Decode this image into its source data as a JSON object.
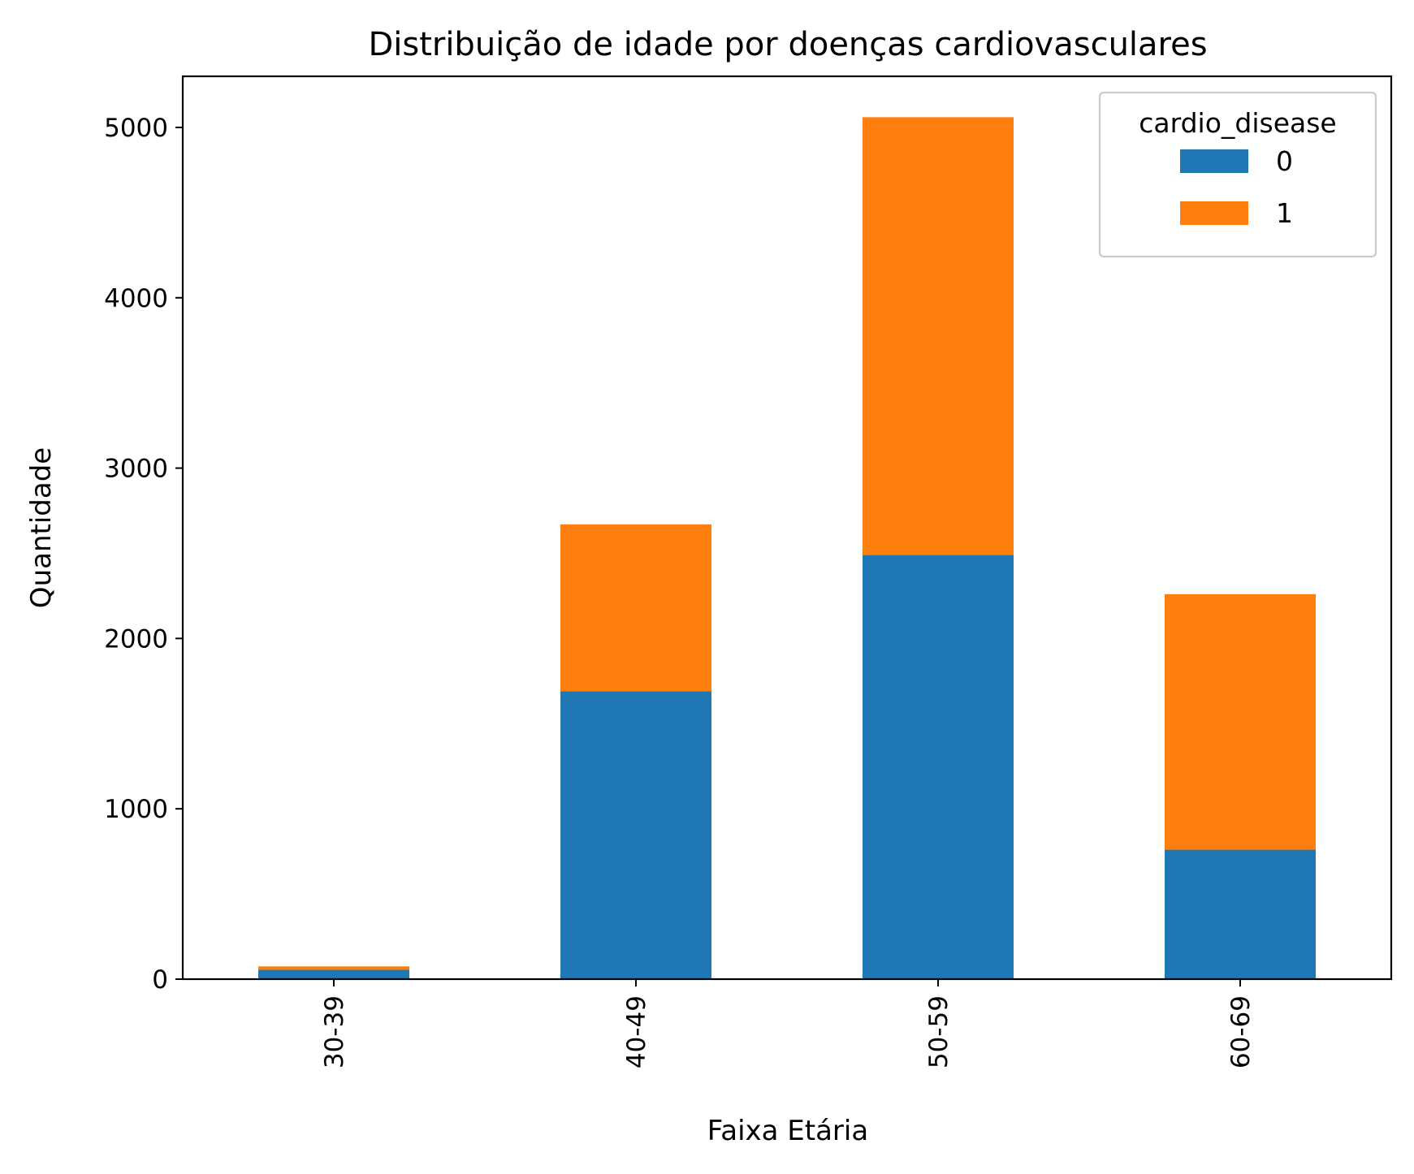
{
  "chart_data": {
    "type": "bar",
    "stacked": true,
    "title": "Distribuição de idade por doenças cardiovasculares",
    "xlabel": "Faixa Etária",
    "ylabel": "Quantidade",
    "categories": [
      "30-39",
      "40-49",
      "50-59",
      "60-69"
    ],
    "series": [
      {
        "name": "0",
        "values": [
          55,
          1690,
          2490,
          760
        ],
        "color": "#1f77b4"
      },
      {
        "name": "1",
        "values": [
          20,
          980,
          2570,
          1500
        ],
        "color": "#ff7f0e"
      }
    ],
    "ylim": [
      0,
      5300
    ],
    "yticks": [
      0,
      1000,
      2000,
      3000,
      4000,
      5000
    ],
    "ytick_labels": [
      "0",
      "1000",
      "2000",
      "3000",
      "4000",
      "5000"
    ],
    "xtick_rotation": "vertical",
    "grid": false,
    "legend": {
      "title": "cardio_disease",
      "position": "top-right"
    }
  }
}
